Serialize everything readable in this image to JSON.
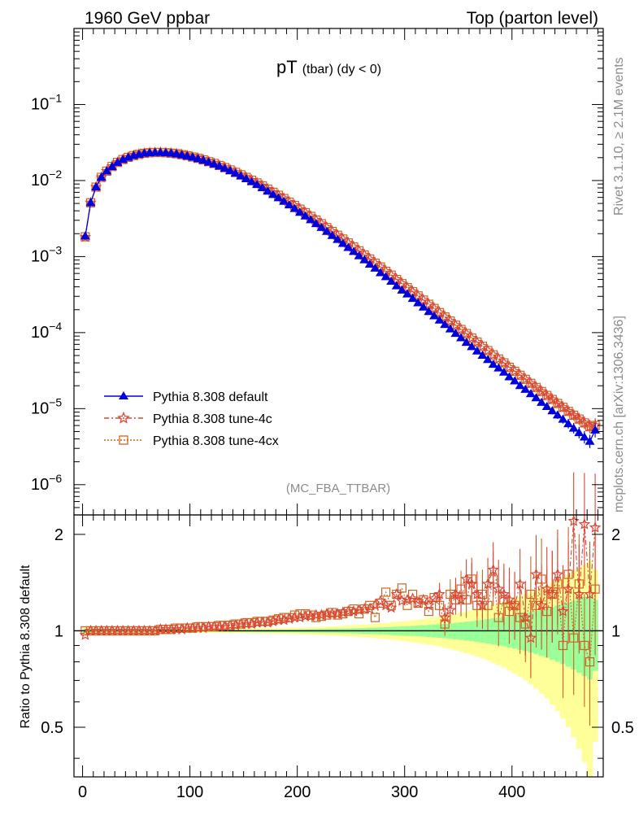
{
  "header": {
    "left": "1960 GeV ppbar",
    "right": "Top (parton level)"
  },
  "side_text": {
    "rivet": "Rivet 3.1.10, ≥ 2.1M events",
    "mcplots": "mcplots.cern.ch [arXiv:1306.3436]"
  },
  "main_panel": {
    "title_main": "pT",
    "title_sub": "(tbar) (dy < 0)",
    "analysis_tag": "(MC_FBA_TTBAR)",
    "y_ticks": [
      {
        "base": "10",
        "exp": "−1",
        "value": 0.1
      },
      {
        "base": "10",
        "exp": "−2",
        "value": 0.01
      },
      {
        "base": "10",
        "exp": "−3",
        "value": 0.001
      },
      {
        "base": "10",
        "exp": "−4",
        "value": 0.0001
      },
      {
        "base": "10",
        "exp": "−5",
        "value": 1e-05
      },
      {
        "base": "10",
        "exp": "−6",
        "value": 1e-06
      }
    ]
  },
  "ratio_panel": {
    "ylabel": "Ratio to Pythia 8.308 default",
    "y_ticks": [
      {
        "label": "2",
        "value": 2
      },
      {
        "label": "1",
        "value": 1
      },
      {
        "label": "0.5",
        "value": 0.5
      }
    ]
  },
  "x_ticks": [
    {
      "label": "0",
      "value": 0
    },
    {
      "label": "100",
      "value": 100
    },
    {
      "label": "200",
      "value": 200
    },
    {
      "label": "300",
      "value": 300
    },
    {
      "label": "400",
      "value": 400
    }
  ],
  "legend": [
    {
      "label": "Pythia 8.308 default",
      "color": "#0000dd",
      "marker": "triangle"
    },
    {
      "label": "Pythia 8.308 tune-4c",
      "color": "#dd4433",
      "marker": "star"
    },
    {
      "label": "Pythia 8.308 tune-4cx",
      "color": "#cc6622",
      "marker": "square"
    }
  ],
  "chart_data": {
    "type": "line",
    "x_range": [
      -8,
      485
    ],
    "ylim_main": [
      4e-07,
      1.0
    ],
    "y_scale_main": "log",
    "ylim_ratio": [
      0.35,
      2.3
    ],
    "y_scale_ratio": "log",
    "band_colors": {
      "inner": "#99ff99",
      "outer": "#ffff99"
    },
    "x": [
      2.5,
      7.5,
      12.5,
      17.5,
      22.5,
      27.5,
      32.5,
      37.5,
      42.5,
      47.5,
      52.5,
      57.5,
      62.5,
      67.5,
      72.5,
      77.5,
      82.5,
      87.5,
      92.5,
      97.5,
      102.5,
      107.5,
      112.5,
      117.5,
      122.5,
      127.5,
      132.5,
      137.5,
      142.5,
      147.5,
      152.5,
      157.5,
      162.5,
      167.5,
      172.5,
      177.5,
      182.5,
      187.5,
      192.5,
      197.5,
      202.5,
      207.5,
      212.5,
      217.5,
      222.5,
      227.5,
      232.5,
      237.5,
      242.5,
      247.5,
      252.5,
      257.5,
      262.5,
      267.5,
      272.5,
      277.5,
      282.5,
      287.5,
      292.5,
      297.5,
      302.5,
      307.5,
      312.5,
      317.5,
      322.5,
      327.5,
      332.5,
      337.5,
      342.5,
      347.5,
      352.5,
      357.5,
      362.5,
      367.5,
      372.5,
      377.5,
      382.5,
      387.5,
      392.5,
      397.5,
      402.5,
      407.5,
      412.5,
      417.5,
      422.5,
      427.5,
      432.5,
      437.5,
      442.5,
      447.5,
      452.5,
      457.5,
      462.5,
      467.5,
      472.5,
      477.5
    ],
    "series": [
      {
        "name": "Pythia 8.308 default",
        "values": [
          0.00185,
          0.0051,
          0.0082,
          0.011,
          0.0133,
          0.0152,
          0.0172,
          0.0188,
          0.0201,
          0.0212,
          0.022,
          0.0227,
          0.0231,
          0.0233,
          0.0233,
          0.0231,
          0.0228,
          0.0223,
          0.0217,
          0.021,
          0.0202,
          0.0193,
          0.0184,
          0.0174,
          0.0164,
          0.0154,
          0.0144,
          0.0134,
          0.0124,
          0.0114,
          0.0105,
          0.0096,
          0.0088,
          0.008,
          0.0072,
          0.0065,
          0.0059,
          0.0053,
          0.00475,
          0.00425,
          0.0038,
          0.0034,
          0.00303,
          0.0027,
          0.0024,
          0.00213,
          0.00188,
          0.00167,
          0.00148,
          0.00131,
          0.00116,
          0.00102,
          0.0009,
          0.00079,
          0.0007,
          0.00061,
          0.00054,
          0.00047,
          0.00041,
          0.00036,
          0.00032,
          0.00028,
          0.000245,
          0.000215,
          0.000188,
          0.000165,
          0.000145,
          0.000127,
          0.000111,
          9.7e-05,
          8.5e-05,
          7.4e-05,
          6.5e-05,
          5.7e-05,
          5e-05,
          4.4e-05,
          3.8e-05,
          3.4e-05,
          3e-05,
          2.6e-05,
          2.3e-05,
          2e-05,
          1.78e-05,
          1.56e-05,
          1.38e-05,
          1.2e-05,
          1.06e-05,
          9.3e-06,
          8.2e-06,
          7.2e-06,
          6.3e-06,
          5.5e-06,
          4.8e-06,
          4.2e-06,
          3.7e-06,
          5.2e-06
        ]
      },
      {
        "name": "Pythia 8.308 tune-4c",
        "values": [
          0.0018,
          0.0051,
          0.0082,
          0.011,
          0.0133,
          0.0153,
          0.0173,
          0.0189,
          0.0202,
          0.0213,
          0.0221,
          0.0228,
          0.0232,
          0.0234,
          0.0234,
          0.0232,
          0.0229,
          0.0225,
          0.0219,
          0.0212,
          0.0204,
          0.0196,
          0.0187,
          0.0177,
          0.0168,
          0.0158,
          0.0148,
          0.0138,
          0.0128,
          0.0119,
          0.011,
          0.0101,
          0.0093,
          0.0085,
          0.0077,
          0.007,
          0.0064,
          0.0058,
          0.0052,
          0.0047,
          0.0042,
          0.00378,
          0.00338,
          0.00302,
          0.0027,
          0.00241,
          0.00214,
          0.00191,
          0.0017,
          0.00151,
          0.00134,
          0.00119,
          0.00105,
          0.00093,
          0.00082,
          0.00073,
          0.00064,
          0.00057,
          0.0005,
          0.00044,
          0.00039,
          0.000345,
          0.000304,
          0.000268,
          0.000236,
          0.000208,
          0.000183,
          0.000161,
          0.000142,
          0.000125,
          0.00011,
          9.7e-05,
          8.5e-05,
          7.5e-05,
          6.6e-05,
          5.8e-05,
          5.1e-05,
          4.5e-05,
          4e-05,
          3.5e-05,
          3.1e-05,
          2.75e-05,
          2.43e-05,
          2.15e-05,
          1.9e-05,
          1.68e-05,
          1.49e-05,
          1.32e-05,
          1.17e-05,
          1.04e-05,
          9.2e-06,
          8.2e-06,
          7.3e-06,
          6.5e-06,
          5.8e-06,
          6e-06
        ]
      },
      {
        "name": "Pythia 8.308 tune-4cx",
        "values": [
          0.00182,
          0.0051,
          0.0082,
          0.011,
          0.0133,
          0.0153,
          0.0173,
          0.0189,
          0.0202,
          0.0213,
          0.0221,
          0.0228,
          0.0232,
          0.0234,
          0.0234,
          0.0232,
          0.0229,
          0.0225,
          0.0219,
          0.0212,
          0.0204,
          0.0196,
          0.0187,
          0.0177,
          0.0168,
          0.0158,
          0.0148,
          0.0138,
          0.0128,
          0.0119,
          0.011,
          0.0101,
          0.0093,
          0.0085,
          0.0077,
          0.007,
          0.0064,
          0.0058,
          0.0052,
          0.0047,
          0.0042,
          0.00378,
          0.00338,
          0.00302,
          0.0027,
          0.00241,
          0.00214,
          0.00191,
          0.0017,
          0.00151,
          0.00134,
          0.00119,
          0.00105,
          0.00093,
          0.00082,
          0.00073,
          0.00064,
          0.00057,
          0.0005,
          0.00044,
          0.00039,
          0.000345,
          0.000304,
          0.000268,
          0.000236,
          0.000208,
          0.000183,
          0.000161,
          0.000142,
          0.000125,
          0.00011,
          9.7e-05,
          8.5e-05,
          7.5e-05,
          6.6e-05,
          5.8e-05,
          5.1e-05,
          4.5e-05,
          4e-05,
          3.5e-05,
          3.1e-05,
          2.75e-05,
          2.43e-05,
          2.15e-05,
          1.9e-05,
          1.68e-05,
          1.49e-05,
          1.32e-05,
          1.17e-05,
          1.04e-05,
          9.2e-06,
          8.2e-06,
          7.3e-06,
          6.5e-06,
          5.8e-06,
          6e-06
        ]
      }
    ],
    "ratio_series": [
      {
        "name": "Pythia 8.308 tune-4c",
        "values": [
          0.97,
          1.0,
          1.0,
          1.0,
          1.0,
          1.0,
          1.0,
          1.0,
          1.0,
          1.0,
          1.0,
          1.0,
          1.0,
          1.0,
          1.01,
          1.01,
          1.01,
          1.01,
          1.01,
          1.02,
          1.02,
          1.02,
          1.02,
          1.03,
          1.03,
          1.03,
          1.03,
          1.04,
          1.04,
          1.05,
          1.05,
          1.05,
          1.06,
          1.06,
          1.06,
          1.07,
          1.08,
          1.08,
          1.09,
          1.1,
          1.1,
          1.11,
          1.11,
          1.12,
          1.12,
          1.13,
          1.13,
          1.13,
          1.14,
          1.15,
          1.15,
          1.16,
          1.17,
          1.17,
          1.2,
          1.24,
          1.2,
          1.18,
          1.3,
          1.24,
          1.25,
          1.26,
          1.22,
          1.25,
          1.2,
          1.26,
          1.3,
          1.1,
          1.16,
          1.3,
          1.25,
          1.45,
          1.4,
          1.3,
          1.2,
          1.4,
          1.55,
          1.35,
          1.3,
          1.25,
          1.2,
          1.4,
          1.1,
          0.95,
          1.5,
          1.2,
          1.35,
          1.3,
          1.5,
          1.15,
          1.35,
          2.2,
          1.3,
          2.15,
          1.3,
          2.1
        ]
      },
      {
        "name": "Pythia 8.308 tune-4cx",
        "values": [
          1.0,
          1.0,
          1.0,
          1.0,
          1.0,
          1.0,
          1.0,
          1.0,
          1.0,
          1.0,
          1.0,
          1.0,
          1.0,
          1.0,
          1.01,
          1.01,
          1.01,
          1.02,
          1.02,
          1.02,
          1.02,
          1.03,
          1.03,
          1.03,
          1.03,
          1.04,
          1.04,
          1.04,
          1.05,
          1.05,
          1.06,
          1.06,
          1.07,
          1.07,
          1.07,
          1.08,
          1.09,
          1.1,
          1.1,
          1.12,
          1.13,
          1.13,
          1.12,
          1.1,
          1.11,
          1.12,
          1.14,
          1.12,
          1.13,
          1.15,
          1.17,
          1.13,
          1.17,
          1.2,
          1.1,
          1.22,
          1.32,
          1.2,
          1.3,
          1.36,
          1.2,
          1.3,
          1.22,
          1.25,
          1.15,
          1.27,
          1.2,
          1.05,
          1.3,
          1.25,
          1.35,
          1.25,
          1.45,
          1.2,
          1.3,
          1.2,
          1.45,
          1.1,
          1.25,
          1.15,
          1.2,
          1.1,
          1.05,
          1.3,
          1.2,
          1.45,
          1.15,
          1.3,
          1.4,
          0.9,
          1.5,
          0.95,
          1.4,
          0.9,
          0.8,
          1.35
        ]
      }
    ]
  }
}
